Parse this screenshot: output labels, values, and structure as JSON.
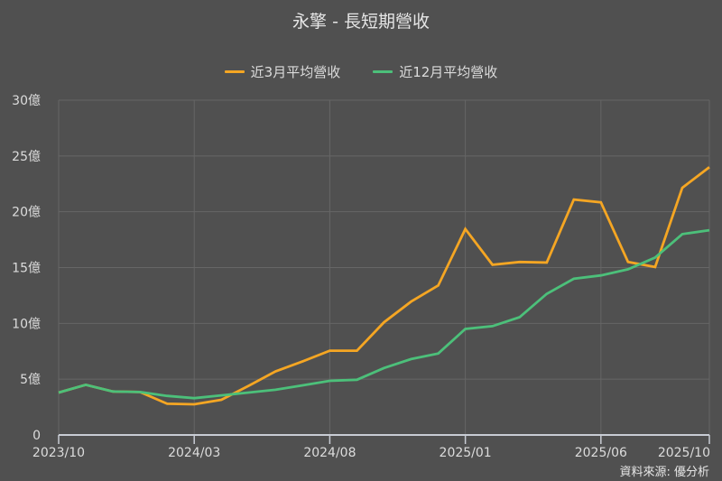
{
  "title": "永擎 - 長短期營收",
  "legend": [
    {
      "label": "近3月平均營收",
      "color": "#F5A623"
    },
    {
      "label": "近12月平均營收",
      "color": "#4CC07A"
    }
  ],
  "source": "資料來源: 優分析",
  "colors": {
    "background": "#505050",
    "grid": "#666666",
    "axis": "#c8ccd4",
    "text": "#dcdcdc"
  },
  "chart_data": {
    "type": "line",
    "title": "永擎 - 長短期營收",
    "xlabel": "",
    "ylabel": "",
    "ylim": [
      0,
      30
    ],
    "yticks": [
      0,
      5,
      10,
      15,
      20,
      25,
      30
    ],
    "ytick_labels": [
      "0",
      "5億",
      "10億",
      "15億",
      "20億",
      "25億",
      "30億"
    ],
    "xtick_labels": [
      "2023/10",
      "2024/03",
      "2024/08",
      "2025/01",
      "2025/06",
      "2025/10"
    ],
    "xtick_indices": [
      0,
      5,
      10,
      15,
      20,
      24
    ],
    "grid": true,
    "legend_position": "top",
    "unit": "億",
    "x": [
      "2023/10",
      "2023/11",
      "2023/12",
      "2024/01",
      "2024/02",
      "2024/03",
      "2024/04",
      "2024/05",
      "2024/06",
      "2024/07",
      "2024/08",
      "2024/09",
      "2024/10",
      "2024/11",
      "2024/12",
      "2025/01",
      "2025/02",
      "2025/03",
      "2025/04",
      "2025/05",
      "2025/06",
      "2025/07",
      "2025/08",
      "2025/09",
      "2025/10"
    ],
    "series": [
      {
        "name": "近3月平均營收",
        "color": "#F5A623",
        "values": [
          3.8,
          4.5,
          3.9,
          3.85,
          2.8,
          2.75,
          3.15,
          4.4,
          5.7,
          6.6,
          7.55,
          7.55,
          10.1,
          11.95,
          13.4,
          18.45,
          15.25,
          15.5,
          15.45,
          21.1,
          20.85,
          15.5,
          15.05,
          22.15,
          24.0
        ]
      },
      {
        "name": "近12月平均營收",
        "color": "#4CC07A",
        "values": [
          3.8,
          4.5,
          3.9,
          3.85,
          3.5,
          3.3,
          3.55,
          3.8,
          4.05,
          4.45,
          4.85,
          4.95,
          6.0,
          6.8,
          7.3,
          9.5,
          9.75,
          10.55,
          12.65,
          14.0,
          14.3,
          14.85,
          15.9,
          18.0,
          18.35
        ]
      }
    ]
  }
}
